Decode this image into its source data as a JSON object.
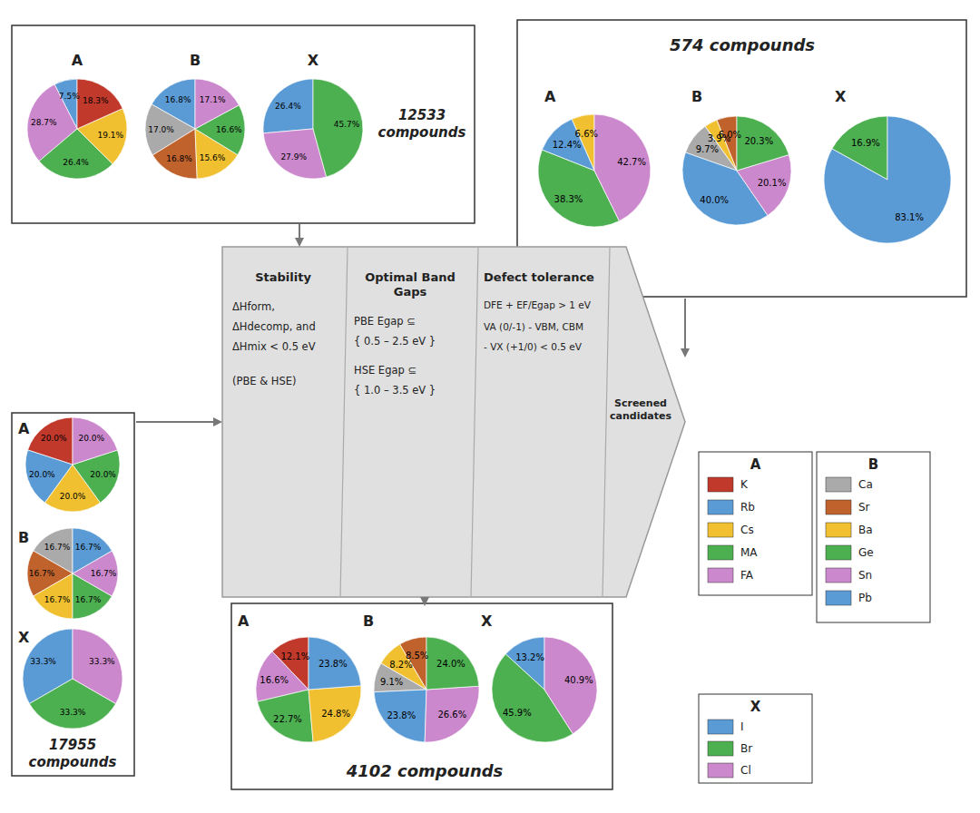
{
  "chart_data": [
    {
      "type": "pie",
      "title": "17955\ncompounds",
      "data_labels": true,
      "series": [
        {
          "name": "A",
          "values": [
            20.0,
            20.0,
            20.0,
            20.0,
            20.0
          ],
          "colors": [
            "#C0392B",
            "#5B9BD5",
            "#F0C030",
            "#4CAF50",
            "#CC88CC"
          ],
          "value_labels": [
            "20.0%",
            "20.0%",
            "20.0%",
            "20.0%",
            "20.0%"
          ]
        },
        {
          "name": "B",
          "values": [
            16.7,
            16.7,
            16.7,
            16.7,
            16.7,
            16.7
          ],
          "colors": [
            "#AAAAAA",
            "#C0622C",
            "#F0C030",
            "#4CAF50",
            "#CC88CC",
            "#5B9BD5"
          ],
          "value_labels": [
            "16.7%",
            "16.7%",
            "16.7%",
            "16.7%",
            "16.7%",
            "16.7%"
          ]
        },
        {
          "name": "X",
          "values": [
            33.3,
            33.3,
            33.3
          ],
          "colors": [
            "#5B9BD5",
            "#4CAF50",
            "#CC88CC"
          ],
          "value_labels": [
            "33.3%",
            "33.3%",
            "33.3%"
          ]
        }
      ]
    },
    {
      "type": "pie",
      "title": "12533\ncompounds",
      "data_labels": true,
      "series": [
        {
          "name": "A",
          "values": [
            7.5,
            28.7,
            26.4,
            19.1,
            18.3
          ],
          "colors": [
            "#5B9BD5",
            "#CC88CC",
            "#4CAF50",
            "#F0C030",
            "#C0392B"
          ],
          "value_labels": [
            "7.5%",
            "28.7%",
            "26.4%",
            "19.1%",
            "18.3%"
          ]
        },
        {
          "name": "B",
          "values": [
            16.8,
            17.0,
            16.8,
            15.6,
            16.6,
            17.1
          ],
          "colors": [
            "#5B9BD5",
            "#AAAAAA",
            "#C0622C",
            "#F0C030",
            "#4CAF50",
            "#CC88CC"
          ],
          "value_labels": [
            "16.8%",
            "17.0%",
            "16.8%",
            "15.6%",
            "16.6%",
            "17.1%"
          ]
        },
        {
          "name": "X",
          "values": [
            26.4,
            27.9,
            45.7
          ],
          "colors": [
            "#5B9BD5",
            "#CC88CC",
            "#4CAF50"
          ],
          "value_labels": [
            "26.4%",
            "27.9%",
            "45.7%"
          ]
        }
      ]
    },
    {
      "type": "pie",
      "title": "4102 compounds",
      "data_labels": true,
      "series": [
        {
          "name": "A",
          "values": [
            12.1,
            16.6,
            22.7,
            24.8,
            23.8
          ],
          "colors": [
            "#C0392B",
            "#CC88CC",
            "#4CAF50",
            "#F0C030",
            "#5B9BD5"
          ],
          "value_labels": [
            "12.1%",
            "16.6%",
            "22.7%",
            "24.8%",
            "23.8%"
          ]
        },
        {
          "name": "B",
          "values": [
            8.5,
            8.2,
            9.1,
            23.8,
            26.6,
            24.0
          ],
          "colors": [
            "#C0622C",
            "#F0C030",
            "#AAAAAA",
            "#5B9BD5",
            "#CC88CC",
            "#4CAF50"
          ],
          "value_labels": [
            "8.5%",
            "8.2%",
            "9.1%",
            "23.8%",
            "26.6%",
            "24.0%"
          ]
        },
        {
          "name": "X",
          "values": [
            13.2,
            45.9,
            40.9
          ],
          "colors": [
            "#5B9BD5",
            "#4CAF50",
            "#CC88CC"
          ],
          "value_labels": [
            "13.2%",
            "45.9%",
            "40.9%"
          ]
        }
      ]
    },
    {
      "type": "pie",
      "title": "574 compounds",
      "data_labels": true,
      "series": [
        {
          "name": "A",
          "values": [
            6.6,
            12.4,
            38.3,
            42.7
          ],
          "colors": [
            "#F0C030",
            "#5B9BD5",
            "#4CAF50",
            "#CC88CC"
          ],
          "value_labels": [
            "6.6%",
            "12.4%",
            "38.3%",
            "42.7%"
          ]
        },
        {
          "name": "B",
          "values": [
            6.0,
            3.9,
            9.7,
            40.0,
            20.1,
            20.3
          ],
          "colors": [
            "#C0622C",
            "#F0C030",
            "#AAAAAA",
            "#5B9BD5",
            "#CC88CC",
            "#4CAF50"
          ],
          "value_labels": [
            "6.0%",
            "3.9%",
            "9.7%",
            "40.0%",
            "20.1%",
            "20.3%"
          ]
        },
        {
          "name": "X",
          "values": [
            16.9,
            83.1
          ],
          "colors": [
            "#4CAF50",
            "#5B9BD5"
          ],
          "value_labels": [
            "16.9%",
            "83.1%"
          ]
        }
      ]
    },
    {
      "type": "legend",
      "series": [
        {
          "name": "A",
          "categories": [
            "K",
            "Rb",
            "Cs",
            "MA",
            "FA"
          ],
          "colors": [
            "#C0392B",
            "#5B9BD5",
            "#F0C030",
            "#4CAF50",
            "#CC88CC"
          ]
        },
        {
          "name": "B",
          "categories": [
            "Ca",
            "Sr",
            "Ba",
            "Ge",
            "Sn",
            "Pb"
          ],
          "colors": [
            "#AAAAAA",
            "#C0622C",
            "#F0C030",
            "#4CAF50",
            "#CC88CC",
            "#5B9BD5"
          ]
        },
        {
          "name": "X",
          "categories": [
            "I",
            "Br",
            "Cl"
          ],
          "colors": [
            "#5B9BD5",
            "#4CAF50",
            "#CC88CC"
          ]
        }
      ]
    },
    {
      "type": "funnel",
      "categories": [
        "Stability",
        "Optimal Band\nGaps",
        "Defect tolerance",
        "Screened\ncandidates"
      ],
      "annotations": [
        [
          "ΔHform,",
          "ΔHdecomp, and",
          "ΔHmix < 0.5 eV",
          "(PBE & HSE)"
        ],
        [
          "PBE Egap ⊆",
          "{ 0.5 – 2.5 eV }",
          "HSE Egap ⊆",
          "{ 1.0 – 3.5 eV }"
        ],
        [
          "DFE + EF/Egap > 1 eV",
          "VA (0/-1) - VBM, CBM",
          "- VX (+1/0) < 0.5 eV"
        ]
      ]
    }
  ]
}
